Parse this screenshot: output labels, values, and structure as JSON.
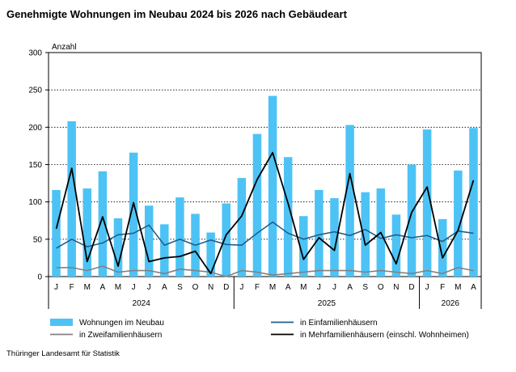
{
  "chart_data": {
    "type": "bar",
    "title": "Genehmigte Wohnungen im Neubau 2024 bis 2026 nach Gebäudeart",
    "ylabel": "Anzahl",
    "xlabel": "",
    "ylim": [
      0,
      300
    ],
    "yticks": [
      0,
      50,
      100,
      150,
      200,
      250,
      300
    ],
    "grid": true,
    "legend_position": "bottom",
    "categories": [
      "J",
      "F",
      "M",
      "A",
      "M",
      "J",
      "J",
      "A",
      "S",
      "O",
      "N",
      "D",
      "J",
      "F",
      "M",
      "A",
      "M",
      "J",
      "J",
      "A",
      "S",
      "O",
      "N",
      "D",
      "J",
      "F",
      "M",
      "A"
    ],
    "year_groups": [
      {
        "label": "2024",
        "months": 12
      },
      {
        "label": "2025",
        "months": 12
      },
      {
        "label": "2026",
        "months": 4
      }
    ],
    "series": [
      {
        "name": "Wohnungen im Neubau",
        "kind": "bar",
        "color": "#4dc3f5",
        "values": [
          116,
          208,
          118,
          141,
          78,
          166,
          95,
          70,
          106,
          84,
          59,
          98,
          132,
          191,
          242,
          160,
          81,
          116,
          105,
          203,
          113,
          118,
          83,
          150,
          197,
          77,
          142,
          199
        ]
      },
      {
        "name": "in Einfamilienhäusern",
        "kind": "line",
        "color": "#1f5f8b",
        "values": [
          38,
          50,
          40,
          45,
          56,
          58,
          69,
          42,
          50,
          42,
          49,
          43,
          42,
          58,
          73,
          58,
          50,
          56,
          60,
          55,
          63,
          51,
          56,
          52,
          55,
          47,
          61,
          58
        ]
      },
      {
        "name": "in Zweifamilienhäusern",
        "kind": "line",
        "color": "#808080",
        "values": [
          12,
          12,
          8,
          14,
          6,
          8,
          8,
          4,
          10,
          8,
          6,
          0,
          8,
          6,
          2,
          4,
          6,
          8,
          8,
          8,
          6,
          8,
          6,
          4,
          8,
          4,
          12,
          8
        ]
      },
      {
        "name": "in Mehrfamilienhäusern (einschl. Wohnheimen)",
        "kind": "line",
        "color": "#000000",
        "values": [
          64,
          145,
          20,
          80,
          14,
          99,
          20,
          25,
          27,
          34,
          4,
          56,
          81,
          130,
          166,
          98,
          23,
          52,
          35,
          138,
          42,
          59,
          17,
          86,
          120,
          25,
          62,
          129
        ]
      }
    ],
    "source": "Thüringer Landesamt für Statistik"
  }
}
